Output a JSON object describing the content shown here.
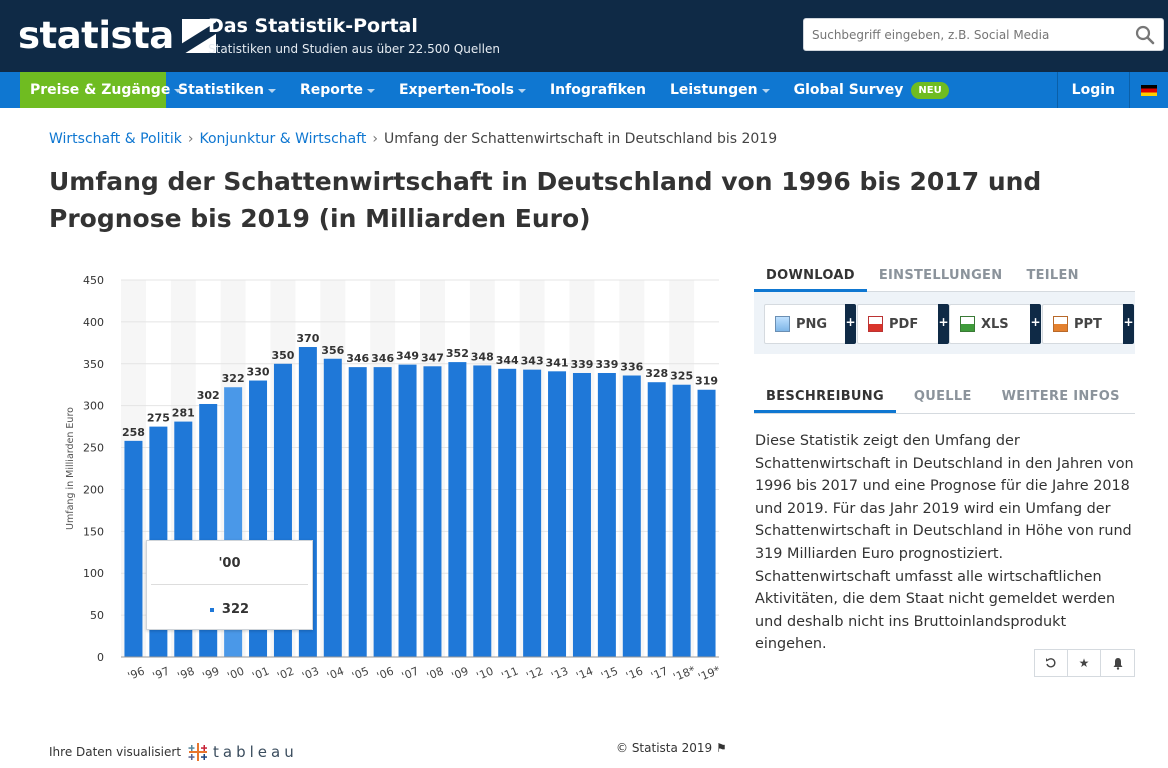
{
  "header": {
    "logo_text": "statista",
    "portal_title": "Das Statistik-Portal",
    "portal_subtitle": "Statistiken und Studien aus über 22.500 Quellen",
    "search_placeholder": "Suchbegriff eingeben, z.B. Social Media"
  },
  "nav": {
    "items": [
      {
        "label": "Preise & Zugänge"
      },
      {
        "label": "Statistiken"
      },
      {
        "label": "Reporte"
      },
      {
        "label": "Experten-Tools"
      },
      {
        "label": "Infografiken"
      },
      {
        "label": "Leistungen"
      },
      {
        "label": "Global Survey"
      }
    ],
    "badge": "NEU",
    "login": "Login"
  },
  "breadcrumb": {
    "items": [
      "Wirtschaft & Politik",
      "Konjunktur & Wirtschaft"
    ],
    "current": "Umfang der Schattenwirtschaft in Deutschland bis 2019"
  },
  "page_title": "Umfang der Schattenwirtschaft in Deutschland von 1996 bis 2017 und Prognose bis 2019 (in Milliarden Euro)",
  "chart_data": {
    "type": "bar",
    "categories": [
      "'96",
      "'97",
      "'98",
      "'99",
      "'00",
      "'01",
      "'02",
      "'03",
      "'04",
      "'05",
      "'06",
      "'07",
      "'08",
      "'09",
      "'10",
      "'11",
      "'12",
      "'13",
      "'14",
      "'15",
      "'16",
      "'17",
      "'18*",
      "'19*"
    ],
    "values": [
      258,
      275,
      281,
      302,
      322,
      330,
      350,
      370,
      356,
      346,
      346,
      349,
      347,
      352,
      348,
      344,
      343,
      341,
      339,
      339,
      336,
      328,
      325,
      319
    ],
    "ylabel": "Umfang in Milliarden Euro",
    "ylim": [
      0,
      450
    ],
    "yticks": [
      0,
      50,
      100,
      150,
      200,
      250,
      300,
      350,
      400,
      450
    ],
    "highlight_index": 4,
    "bar_color": "#1f78d8",
    "highlight_color": "#4a98e8",
    "grid": true
  },
  "tooltip": {
    "category": "'00",
    "value": "322"
  },
  "tabs_download": [
    "DOWNLOAD",
    "EINSTELLUNGEN",
    "TEILEN"
  ],
  "downloads": [
    "PNG",
    "PDF",
    "XLS",
    "PPT"
  ],
  "tabs_info": [
    "BESCHREIBUNG",
    "QUELLE",
    "WEITERE INFOS"
  ],
  "description": "Diese Statistik zeigt den Umfang der Schattenwirtschaft in Deutschland in den Jahren von 1996 bis 2017 und eine Prognose für die Jahre 2018 und 2019. Für das Jahr 2019 wird ein Umfang der Schattenwirtschaft in Deutschland in Höhe von rund 319 Milliarden Euro prognostiziert. Schattenwirtschaft umfasst alle wirtschaftlichen Aktivitäten, die dem Staat nicht gemeldet werden und deshalb nicht ins Bruttoinlandsprodukt eingehen.",
  "footer": {
    "visualized": "Ihre Daten visualisiert",
    "tableau": "tableau",
    "copyright": "© Statista 2019"
  }
}
